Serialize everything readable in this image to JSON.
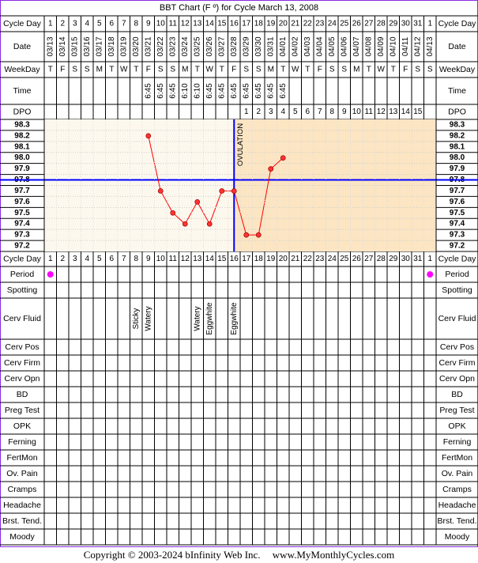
{
  "title": "BBT Chart (F º) for Cycle March 13, 2008",
  "footer": {
    "copyright": "Copyright © 2003-2024 bInfinity Web Inc.",
    "site": "www.MyMonthlyCycles.com"
  },
  "colors": {
    "border": "#8a2be2",
    "pre_ovulation_bg": "#fdf8ee",
    "post_ovulation_bg": "#fbe5c3",
    "temp_line": "#ff0000",
    "temp_point": "#ff3333",
    "coverline": "#0000ff",
    "ovulation_line": "#0000ff",
    "period_dot": "#ff00ff"
  },
  "labels": {
    "cycle_day": "Cycle Day",
    "date": "Date",
    "weekday": "WeekDay",
    "time": "Time",
    "dpo": "DPO",
    "ovulation": "OVULATION"
  },
  "chart_data": {
    "type": "line",
    "cycle_days": [
      1,
      2,
      3,
      4,
      5,
      6,
      7,
      8,
      9,
      10,
      11,
      12,
      13,
      14,
      15,
      16,
      17,
      18,
      19,
      20,
      21,
      22,
      23,
      24,
      25,
      26,
      27,
      28,
      29,
      30,
      31,
      1
    ],
    "dates": [
      "03/13",
      "03/14",
      "03/15",
      "03/16",
      "03/17",
      "03/18",
      "03/19",
      "03/20",
      "03/21",
      "03/22",
      "03/23",
      "03/24",
      "03/25",
      "03/26",
      "03/27",
      "03/28",
      "03/29",
      "03/30",
      "03/31",
      "04/01",
      "04/02",
      "04/03",
      "04/04",
      "04/05",
      "04/06",
      "04/07",
      "04/08",
      "04/09",
      "04/10",
      "04/11",
      "04/12",
      "04/13"
    ],
    "weekdays": [
      "T",
      "F",
      "S",
      "S",
      "M",
      "T",
      "W",
      "T",
      "F",
      "S",
      "S",
      "M",
      "T",
      "W",
      "T",
      "F",
      "S",
      "S",
      "M",
      "T",
      "W",
      "T",
      "F",
      "S",
      "S",
      "M",
      "T",
      "W",
      "T",
      "F",
      "S",
      "S"
    ],
    "times": [
      "",
      "",
      "",
      "",
      "",
      "",
      "",
      "",
      "6:45",
      "6:45",
      "6:45",
      "6:10",
      "6:10",
      "6:45",
      "6:45",
      "6:45",
      "6:45",
      "6:45",
      "6:45",
      "6:45",
      "",
      "",
      "",
      "",
      "",
      "",
      "",
      "",
      "",
      "",
      "",
      ""
    ],
    "dpo": [
      "",
      "",
      "",
      "",
      "",
      "",
      "",
      "",
      "",
      "",
      "",
      "",
      "",
      "",
      "",
      "",
      "1",
      "2",
      "3",
      "4",
      "5",
      "6",
      "7",
      "8",
      "9",
      "10",
      "11",
      "12",
      "13",
      "14",
      "15",
      ""
    ],
    "temp_ticks": [
      "98.3",
      "98.2",
      "98.1",
      "98.0",
      "97.9",
      "97.8",
      "97.7",
      "97.6",
      "97.5",
      "97.4",
      "97.3",
      "97.2"
    ],
    "ylim": [
      97.2,
      98.3
    ],
    "temps": [
      null,
      null,
      null,
      null,
      null,
      null,
      null,
      null,
      98.2,
      97.7,
      97.5,
      97.4,
      97.6,
      97.4,
      97.7,
      97.7,
      97.3,
      97.3,
      97.9,
      98.0,
      null,
      null,
      null,
      null,
      null,
      null,
      null,
      null,
      null,
      null,
      null,
      null
    ],
    "coverline": 97.8,
    "ovulation_day": 16,
    "rows": [
      {
        "label": "Period",
        "kind": "dot",
        "marks": {
          "1": "dot",
          "32": "dot"
        }
      },
      {
        "label": "Spotting",
        "kind": "text",
        "marks": {}
      },
      {
        "label": "Cerv Fluid",
        "kind": "text",
        "marks": {
          "8": "Sticky",
          "9": "Watery",
          "13": "Watery",
          "14": "Eggwhite",
          "16": "Eggwhite"
        }
      },
      {
        "label": "Cerv Pos",
        "kind": "text",
        "marks": {}
      },
      {
        "label": "Cerv Firm",
        "kind": "text",
        "marks": {}
      },
      {
        "label": "Cerv Opn",
        "kind": "text",
        "marks": {}
      },
      {
        "label": "BD",
        "kind": "text",
        "marks": {}
      },
      {
        "label": "Preg Test",
        "kind": "text",
        "marks": {}
      },
      {
        "label": "OPK",
        "kind": "text",
        "marks": {}
      },
      {
        "label": "Ferning",
        "kind": "text",
        "marks": {}
      },
      {
        "label": "FertMon",
        "kind": "text",
        "marks": {}
      },
      {
        "label": "Ov. Pain",
        "kind": "text",
        "marks": {}
      },
      {
        "label": "Cramps",
        "kind": "text",
        "marks": {}
      },
      {
        "label": "Headache",
        "kind": "text",
        "marks": {}
      },
      {
        "label": "Brst. Tend.",
        "kind": "text",
        "marks": {}
      },
      {
        "label": "Moody",
        "kind": "text",
        "marks": {}
      }
    ]
  }
}
